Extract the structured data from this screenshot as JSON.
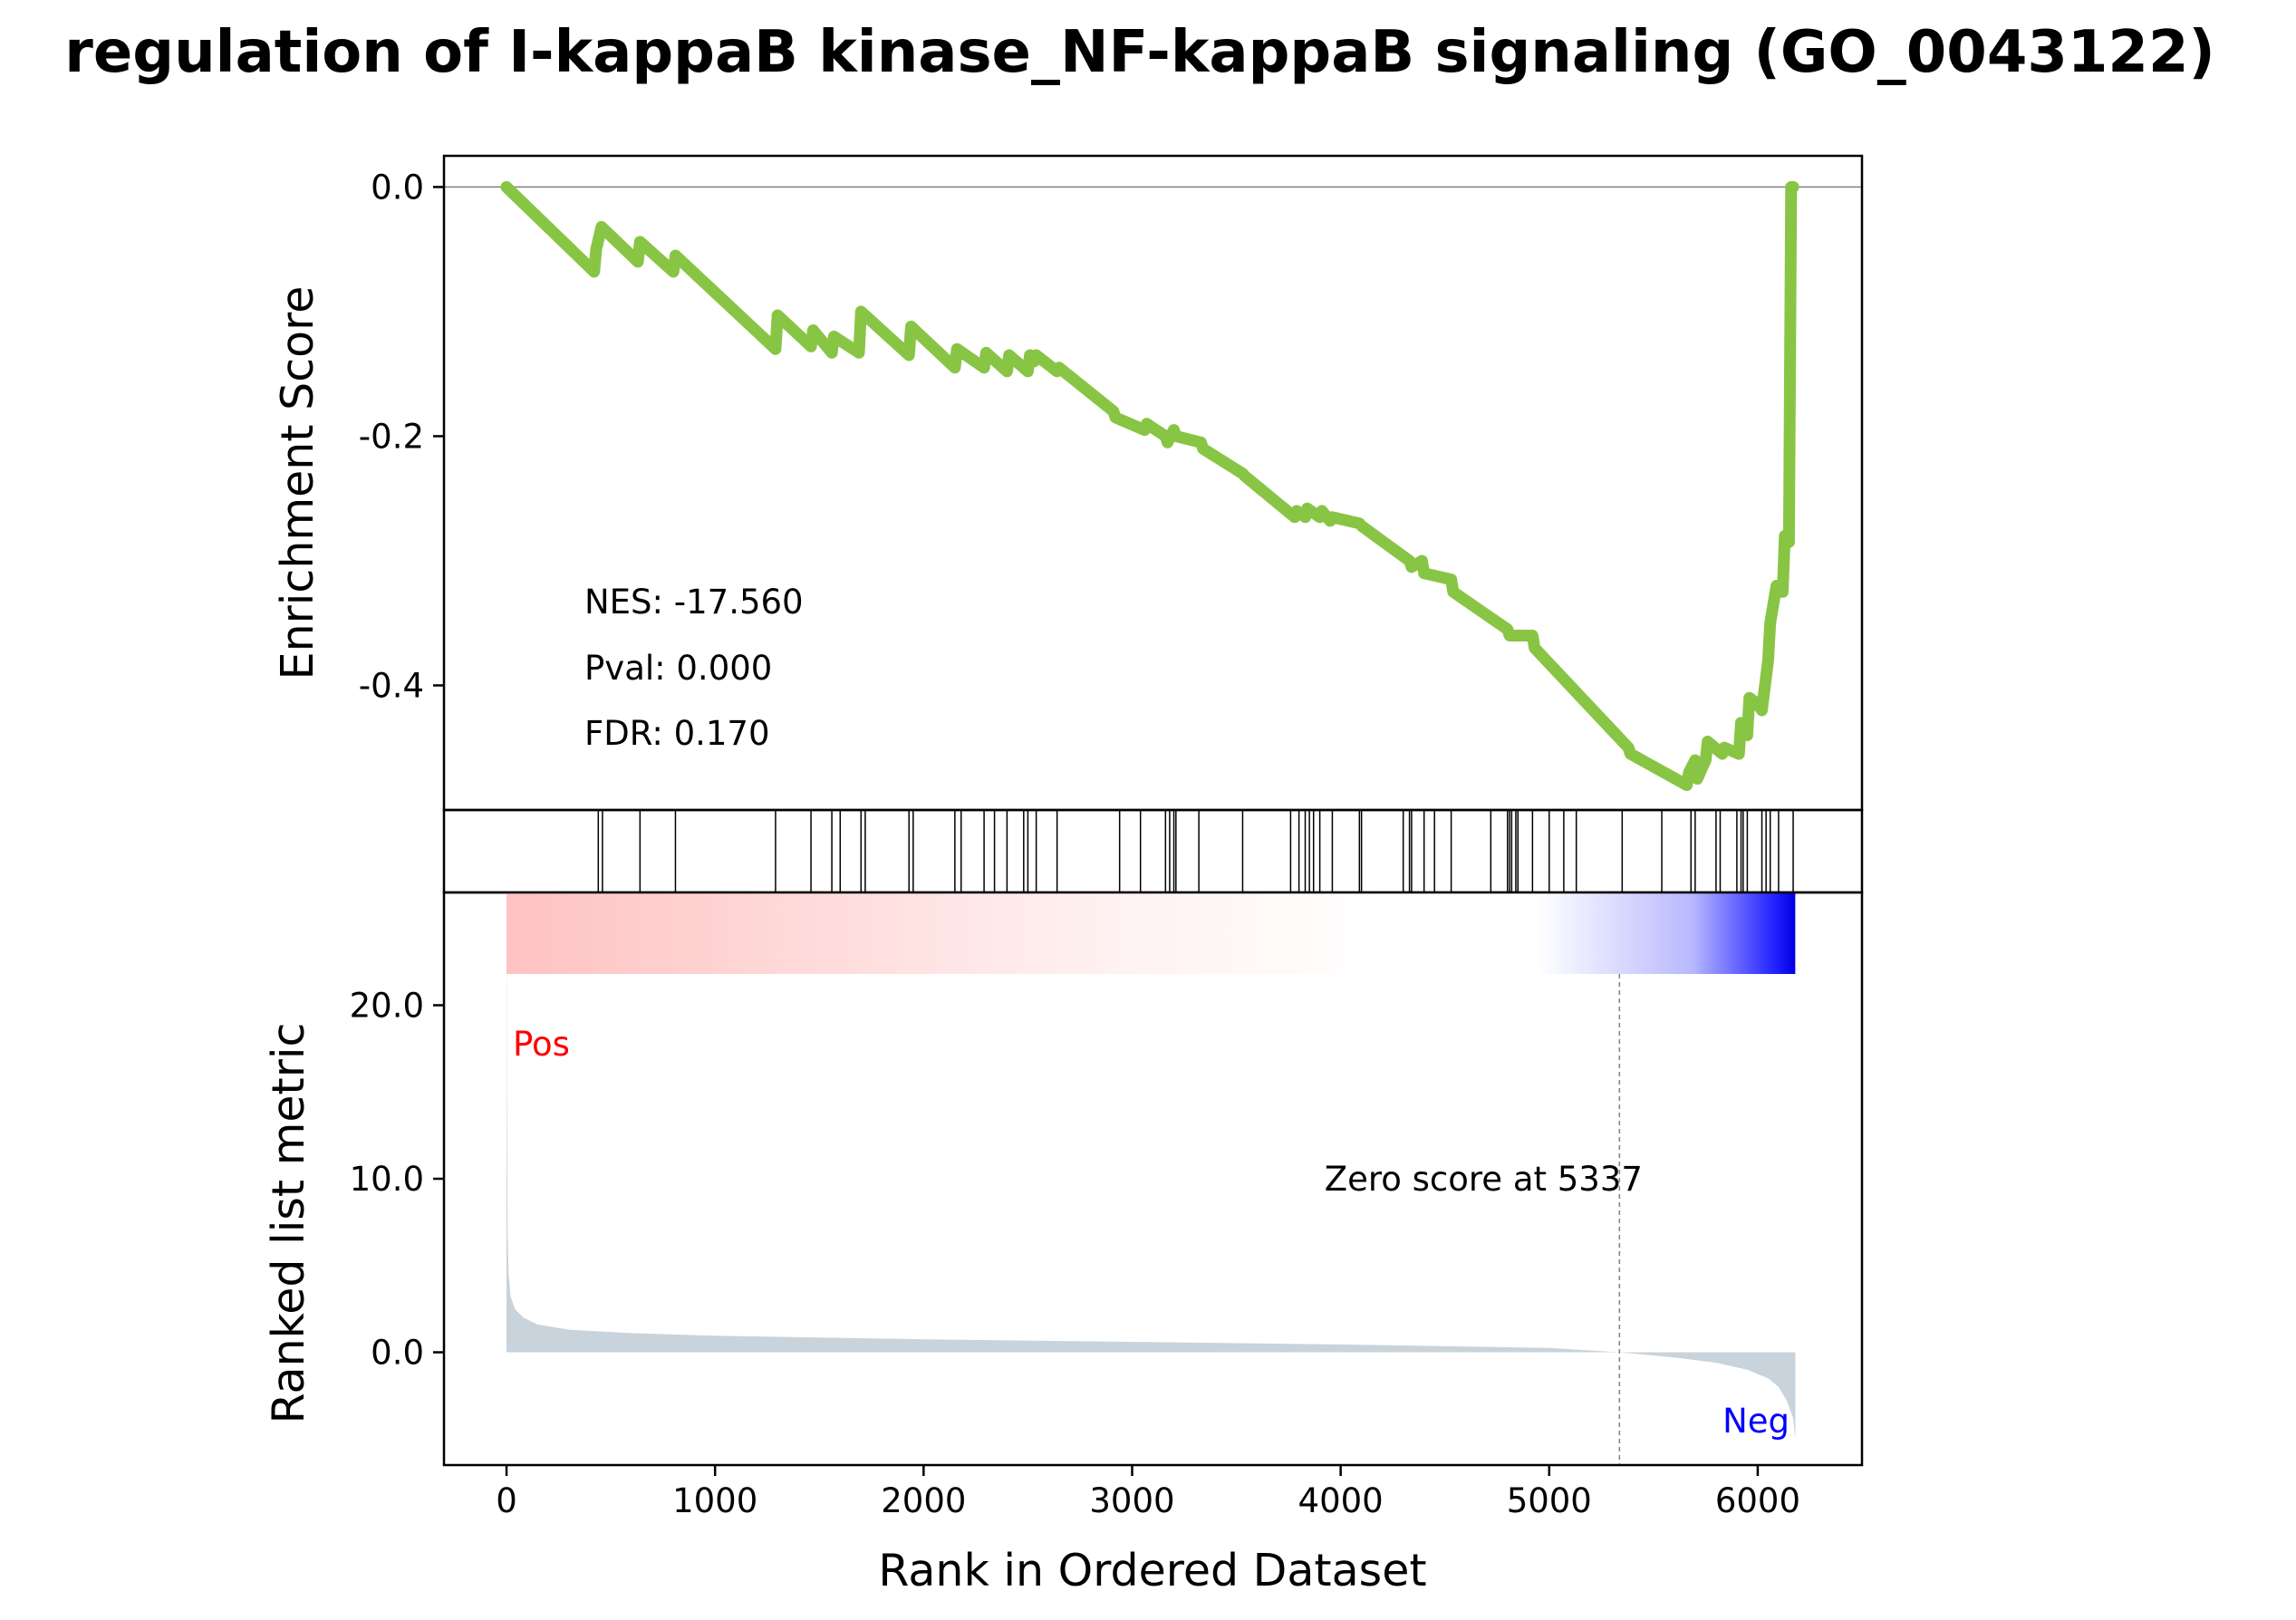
{
  "chart_data": {
    "type": "line",
    "title": "regulation of I-kappaB kinase_NF-kappaB signaling (GO_0043122)",
    "xlabel": "Rank in Ordered Dataset",
    "xlim": [
      -300,
      6500
    ],
    "x_ticks": [
      {
        "value": 0,
        "label": "0"
      },
      {
        "value": 1000,
        "label": "1000"
      },
      {
        "value": 2000,
        "label": "2000"
      },
      {
        "value": 3000,
        "label": "3000"
      },
      {
        "value": 4000,
        "label": "4000"
      },
      {
        "value": 5000,
        "label": "5000"
      },
      {
        "value": 6000,
        "label": "6000"
      }
    ],
    "enrichment": {
      "ylabel": "Enrichment Score",
      "ylim": [
        -0.5,
        0.025
      ],
      "y_ticks": [
        {
          "value": 0.0,
          "label": "0.0"
        },
        {
          "value": -0.2,
          "label": "-0.2"
        },
        {
          "value": -0.4,
          "label": "-0.4"
        }
      ],
      "line_color": "#88C544",
      "x": [
        0,
        420,
        430,
        455,
        630,
        640,
        800,
        810,
        1290,
        1300,
        1460,
        1470,
        1560,
        1570,
        1690,
        1700,
        1930,
        1940,
        2150,
        2160,
        2290,
        2300,
        2400,
        2410,
        2500,
        2510,
        2530,
        2540,
        2640,
        2650,
        2910,
        2920,
        3060,
        3070,
        3160,
        3170,
        3200,
        3210,
        3330,
        3340,
        3530,
        3540,
        3780,
        3790,
        3830,
        3840,
        3900,
        3910,
        3950,
        3960,
        4090,
        4100,
        4330,
        4340,
        4390,
        4400,
        4530,
        4540,
        4800,
        4810,
        4920,
        4930,
        5380,
        5390,
        5660,
        5670,
        5700,
        5710,
        5750,
        5760,
        5830,
        5840,
        5910,
        5920,
        5950,
        5960,
        6000,
        6020,
        6050,
        6060,
        6080,
        6090,
        6120,
        6130,
        6150,
        6160,
        6170
      ],
      "y": [
        0.0,
        -0.068,
        -0.05,
        -0.032,
        -0.06,
        -0.044,
        -0.068,
        -0.055,
        -0.13,
        -0.103,
        -0.128,
        -0.115,
        -0.133,
        -0.12,
        -0.133,
        -0.1,
        -0.135,
        -0.112,
        -0.145,
        -0.13,
        -0.145,
        -0.133,
        -0.148,
        -0.135,
        -0.148,
        -0.135,
        -0.14,
        -0.135,
        -0.148,
        -0.145,
        -0.18,
        -0.185,
        -0.195,
        -0.19,
        -0.2,
        -0.205,
        -0.195,
        -0.2,
        -0.205,
        -0.21,
        -0.23,
        -0.232,
        -0.265,
        -0.26,
        -0.265,
        -0.258,
        -0.265,
        -0.26,
        -0.268,
        -0.265,
        -0.27,
        -0.272,
        -0.3,
        -0.305,
        -0.3,
        -0.31,
        -0.315,
        -0.325,
        -0.355,
        -0.36,
        -0.36,
        -0.37,
        -0.45,
        -0.455,
        -0.48,
        -0.47,
        -0.46,
        -0.475,
        -0.46,
        -0.445,
        -0.455,
        -0.45,
        -0.455,
        -0.43,
        -0.44,
        -0.41,
        -0.415,
        -0.42,
        -0.38,
        -0.35,
        -0.33,
        -0.32,
        -0.325,
        -0.28,
        -0.285,
        0.0,
        0.0
      ],
      "stats": [
        "NES: -17.560",
        "Pval: 0.000",
        "FDR: 0.170"
      ]
    },
    "hits": [
      440,
      460,
      640,
      810,
      1290,
      1460,
      1560,
      1600,
      1700,
      1720,
      1930,
      1950,
      2150,
      2180,
      2290,
      2340,
      2400,
      2480,
      2500,
      2540,
      2640,
      2940,
      3040,
      3160,
      3180,
      3200,
      3210,
      3320,
      3530,
      3760,
      3800,
      3830,
      3850,
      3870,
      3900,
      3960,
      4090,
      4100,
      4300,
      4330,
      4340,
      4400,
      4450,
      4530,
      4720,
      4800,
      4810,
      4820,
      4840,
      4850,
      4920,
      5000,
      5070,
      5130,
      5350,
      5540,
      5680,
      5700,
      5800,
      5820,
      5900,
      5920,
      5930,
      5950,
      6020,
      6040,
      6060,
      6100,
      6170
    ],
    "ranked": {
      "ylabel": "Ranked list metric",
      "ylim": [
        -6.5,
        26.5
      ],
      "y_ticks": [
        {
          "value": 20.0,
          "label": "20.0"
        },
        {
          "value": 10.0,
          "label": "10.0"
        },
        {
          "value": 0.0,
          "label": "0.0"
        }
      ],
      "fill_color": "#C9D3DB",
      "x": [
        0,
        2,
        5,
        10,
        20,
        40,
        80,
        150,
        300,
        600,
        1000,
        2000,
        3000,
        4000,
        5000,
        5337,
        5600,
        5800,
        5950,
        6050,
        6100,
        6140,
        6170,
        6180
      ],
      "y": [
        25.5,
        14,
        7,
        4.5,
        3.2,
        2.5,
        2.0,
        1.6,
        1.3,
        1.1,
        0.95,
        0.75,
        0.6,
        0.45,
        0.25,
        0.0,
        -0.3,
        -0.6,
        -1.0,
        -1.5,
        -2.0,
        -2.8,
        -3.8,
        -5.0
      ],
      "zero_score_label": "Zero score at 5337",
      "zero_score_x": 5337,
      "pos_label": "Pos",
      "neg_label": "Neg",
      "pos_color": "#FF0000",
      "neg_color": "#0000FF"
    }
  }
}
